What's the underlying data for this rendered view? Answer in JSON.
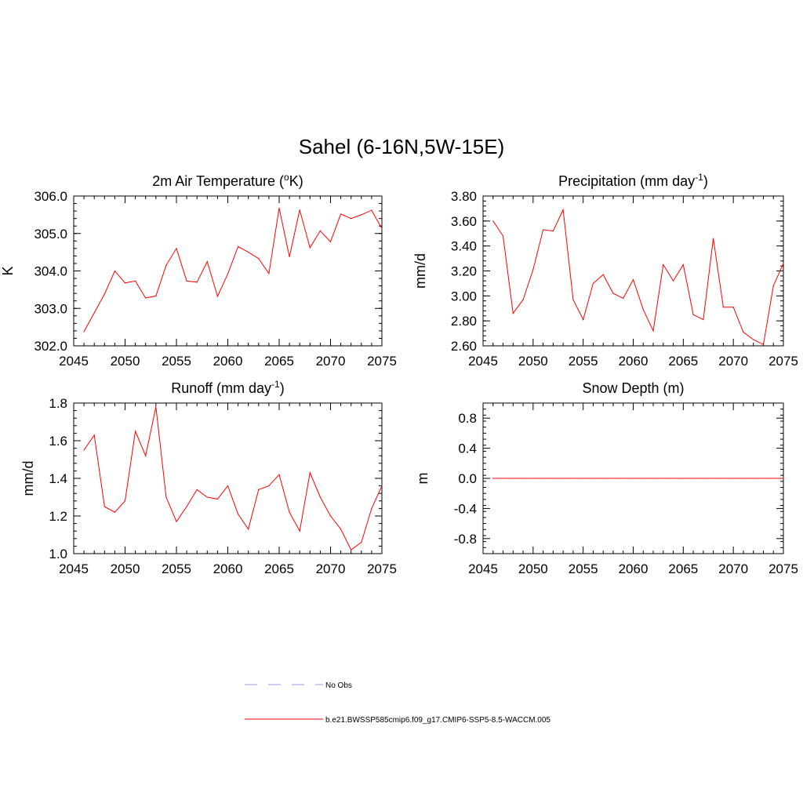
{
  "title": "Sahel (6-16N,5W-15E)",
  "colors": {
    "model": "#ff0000",
    "obs": "#9999dd"
  },
  "legend": {
    "items": [
      {
        "label": "No Obs",
        "style": "dashed",
        "color": "#9999dd"
      },
      {
        "label": "b.e21.BWSSP585cmip6.f09_g17.CMIP6-SSP5-8.5-WACCM.005",
        "style": "solid",
        "color": "#ff0000"
      }
    ]
  },
  "chart_data": [
    {
      "type": "line",
      "title_main": "2m Air Temperature (",
      "title_sup": "o",
      "title_tail": "K)",
      "ylabel": "K",
      "xlim": [
        2045,
        2075
      ],
      "ylim": [
        302.0,
        306.0
      ],
      "xticks": [
        2045,
        2050,
        2055,
        2060,
        2065,
        2070,
        2075
      ],
      "yticks": [
        302.0,
        303.0,
        304.0,
        305.0,
        306.0
      ],
      "ytick_labels": [
        "302.0",
        "303.0",
        "304.0",
        "305.0",
        "306.0"
      ],
      "yminor_step": 0.2,
      "series": [
        {
          "name": "b.e21.BWSSP585cmip6.f09_g17.CMIP6-SSP5-8.5-WACCM.005",
          "x": [
            2046,
            2047,
            2048,
            2049,
            2050,
            2051,
            2052,
            2053,
            2054,
            2055,
            2056,
            2057,
            2058,
            2059,
            2060,
            2061,
            2062,
            2063,
            2064,
            2065,
            2066,
            2067,
            2068,
            2069,
            2070,
            2071,
            2072,
            2073,
            2074,
            2075
          ],
          "values": [
            302.38,
            302.88,
            303.38,
            304.0,
            303.68,
            303.73,
            303.28,
            303.33,
            304.15,
            304.6,
            303.73,
            303.7,
            304.25,
            303.32,
            303.92,
            304.65,
            304.5,
            304.33,
            303.93,
            305.68,
            304.38,
            305.63,
            304.62,
            305.07,
            304.78,
            305.52,
            305.4,
            305.5,
            305.62,
            305.13
          ]
        }
      ]
    },
    {
      "type": "line",
      "title_main": "Precipitation (mm day",
      "title_sup": "-1",
      "title_tail": ")",
      "ylabel": "mm/d",
      "xlim": [
        2045,
        2075
      ],
      "ylim": [
        2.6,
        3.8
      ],
      "xticks": [
        2045,
        2050,
        2055,
        2060,
        2065,
        2070,
        2075
      ],
      "yticks": [
        2.6,
        2.8,
        3.0,
        3.2,
        3.4,
        3.6,
        3.8
      ],
      "ytick_labels": [
        "2.60",
        "2.80",
        "3.00",
        "3.20",
        "3.40",
        "3.60",
        "3.80"
      ],
      "yminor_step": 0.04,
      "series": [
        {
          "name": "b.e21.BWSSP585cmip6.f09_g17.CMIP6-SSP5-8.5-WACCM.005",
          "x": [
            2046,
            2047,
            2048,
            2049,
            2050,
            2051,
            2052,
            2053,
            2054,
            2055,
            2056,
            2057,
            2058,
            2059,
            2060,
            2061,
            2062,
            2063,
            2064,
            2065,
            2066,
            2067,
            2068,
            2069,
            2070,
            2071,
            2072,
            2073,
            2074,
            2075
          ],
          "values": [
            3.6,
            3.48,
            2.86,
            2.97,
            3.21,
            3.53,
            3.52,
            3.69,
            2.97,
            2.81,
            3.1,
            3.17,
            3.02,
            2.98,
            3.13,
            2.89,
            2.72,
            3.25,
            3.12,
            3.25,
            2.85,
            2.81,
            3.46,
            2.91,
            2.91,
            2.71,
            2.65,
            2.61,
            3.08,
            3.26
          ]
        }
      ]
    },
    {
      "type": "line",
      "title_main": "Runoff (mm day",
      "title_sup": "-1",
      "title_tail": ")",
      "ylabel": "mm/d",
      "xlim": [
        2045,
        2075
      ],
      "ylim": [
        1.0,
        1.8
      ],
      "xticks": [
        2045,
        2050,
        2055,
        2060,
        2065,
        2070,
        2075
      ],
      "yticks": [
        1.0,
        1.2,
        1.4,
        1.6,
        1.8
      ],
      "ytick_labels": [
        "1.0",
        "1.2",
        "1.4",
        "1.6",
        "1.8"
      ],
      "yminor_step": 0.04,
      "series": [
        {
          "name": "b.e21.BWSSP585cmip6.f09_g17.CMIP6-SSP5-8.5-WACCM.005",
          "x": [
            2046,
            2047,
            2048,
            2049,
            2050,
            2051,
            2052,
            2053,
            2054,
            2055,
            2056,
            2057,
            2058,
            2059,
            2060,
            2061,
            2062,
            2063,
            2064,
            2065,
            2066,
            2067,
            2068,
            2069,
            2070,
            2071,
            2072,
            2073,
            2074,
            2075
          ],
          "values": [
            1.55,
            1.63,
            1.25,
            1.22,
            1.28,
            1.65,
            1.52,
            1.78,
            1.3,
            1.17,
            1.25,
            1.34,
            1.3,
            1.29,
            1.36,
            1.21,
            1.13,
            1.34,
            1.36,
            1.42,
            1.22,
            1.12,
            1.43,
            1.3,
            1.2,
            1.13,
            1.02,
            1.06,
            1.24,
            1.36
          ]
        }
      ]
    },
    {
      "type": "line",
      "title_main": "Snow Depth (m)",
      "title_sup": "",
      "title_tail": "",
      "ylabel": "m",
      "xlim": [
        2045,
        2075
      ],
      "ylim": [
        -1.0,
        1.0
      ],
      "xticks": [
        2045,
        2050,
        2055,
        2060,
        2065,
        2070,
        2075
      ],
      "yticks": [
        -0.8,
        -0.4,
        0.0,
        0.4,
        0.8
      ],
      "ytick_labels": [
        "-0.8",
        "-0.4",
        "0.0",
        "0.4",
        "0.8"
      ],
      "yminor_step": 0.08,
      "series": [
        {
          "name": "b.e21.BWSSP585cmip6.f09_g17.CMIP6-SSP5-8.5-WACCM.005",
          "x": [
            2046,
            2047,
            2048,
            2049,
            2050,
            2051,
            2052,
            2053,
            2054,
            2055,
            2056,
            2057,
            2058,
            2059,
            2060,
            2061,
            2062,
            2063,
            2064,
            2065,
            2066,
            2067,
            2068,
            2069,
            2070,
            2071,
            2072,
            2073,
            2074,
            2075
          ],
          "values": [
            0,
            0,
            0,
            0,
            0,
            0,
            0,
            0,
            0,
            0,
            0,
            0,
            0,
            0,
            0,
            0,
            0,
            0,
            0,
            0,
            0,
            0,
            0,
            0,
            0,
            0,
            0,
            0,
            0,
            0
          ]
        }
      ]
    }
  ]
}
